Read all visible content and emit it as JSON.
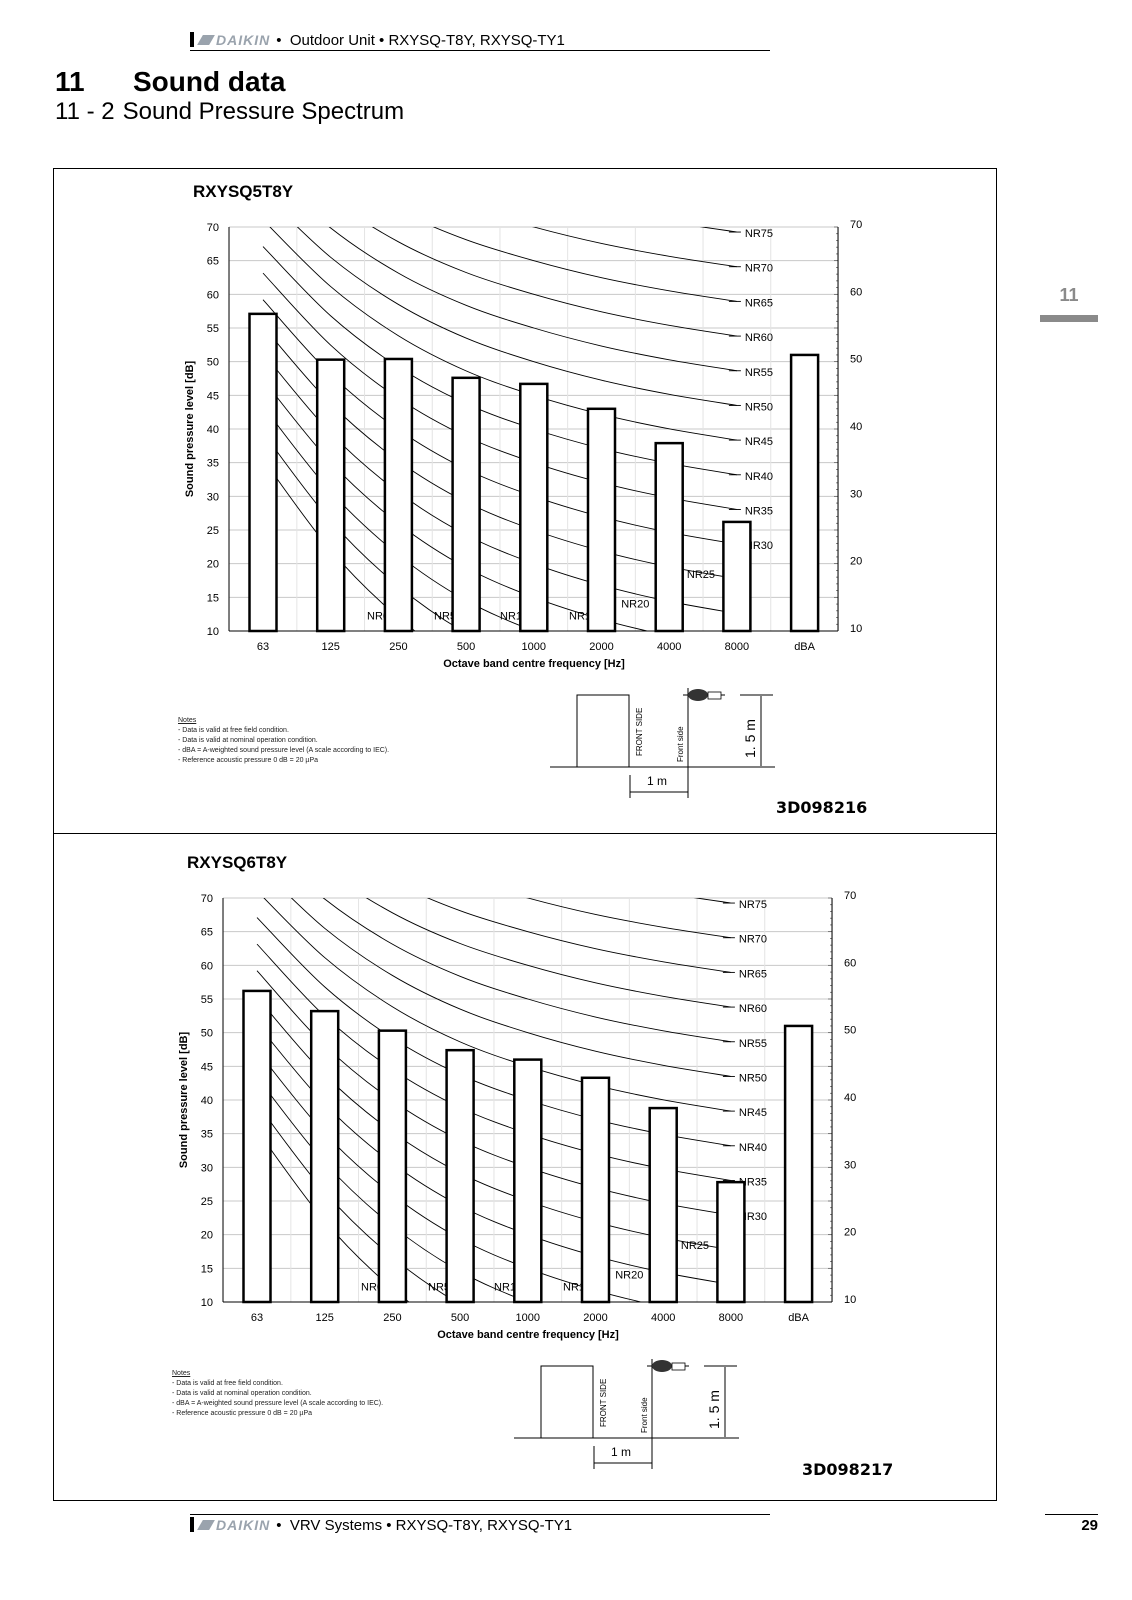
{
  "header": {
    "brand": "DAIKIN",
    "text": "Outdoor Unit • RXYSQ-T8Y, RXYSQ-TY1"
  },
  "section": {
    "number": "11",
    "title": "Sound data",
    "sub_number": "11 - 2",
    "sub_title": "Sound Pressure Spectrum"
  },
  "side_tab": "11",
  "panels": [
    {
      "drawing_no": "3D098216"
    },
    {
      "drawing_no": "3D098217"
    }
  ],
  "notes": {
    "title": "Notes",
    "items": [
      "-  Data is valid at free field condition.",
      "-  Data is valid at nominal operation condition.",
      "-  dBA = A-weighted sound pressure level (A scale according to IEC).",
      "-  Reference acoustic pressure 0 dB = 20 µPa"
    ]
  },
  "diagram": {
    "front_side_unit": "FRONT SIDE",
    "front_side": "Front side",
    "distance": "1 m",
    "height": "1. 5 m"
  },
  "footer": {
    "brand": "DAIKIN",
    "text": "VRV Systems • RXYSQ-T8Y, RXYSQ-TY1",
    "page": "29"
  },
  "chart_data": [
    {
      "type": "bar",
      "title": "RXYSQ5T8Y",
      "xlabel": "Octave band centre frequency [Hz]",
      "ylabel": "Sound pressure level [dB]",
      "categories": [
        "63",
        "125",
        "250",
        "500",
        "1000",
        "2000",
        "4000",
        "8000",
        "dBA"
      ],
      "values": [
        57.1,
        50.3,
        50.4,
        47.6,
        46.7,
        43.0,
        37.9,
        26.2,
        51.0
      ],
      "ylim": [
        10,
        70
      ],
      "left_ticks": [
        "10",
        "15",
        "20",
        "25",
        "30",
        "35",
        "40",
        "45",
        "50",
        "55",
        "60",
        "65",
        "70"
      ],
      "right_ticks": [
        "10",
        "20",
        "30",
        "40",
        "50",
        "60",
        "70"
      ],
      "grid": true,
      "nr_curves": [
        "NR0",
        "NR5",
        "NR10",
        "NR15",
        "NR20",
        "NR25",
        "NR30",
        "NR35",
        "NR40",
        "NR45",
        "NR50",
        "NR55",
        "NR60",
        "NR65",
        "NR70",
        "NR75"
      ]
    },
    {
      "type": "bar",
      "title": "RXYSQ6T8Y",
      "xlabel": "Octave band centre frequency [Hz]",
      "ylabel": "Sound pressure level [dB]",
      "categories": [
        "63",
        "125",
        "250",
        "500",
        "1000",
        "2000",
        "4000",
        "8000",
        "dBA"
      ],
      "values": [
        56.2,
        53.2,
        50.3,
        47.4,
        46.0,
        43.3,
        38.8,
        27.8,
        51.0
      ],
      "ylim": [
        10,
        70
      ],
      "left_ticks": [
        "10",
        "15",
        "20",
        "25",
        "30",
        "35",
        "40",
        "45",
        "50",
        "55",
        "60",
        "65",
        "70"
      ],
      "right_ticks": [
        "10",
        "20",
        "30",
        "40",
        "50",
        "60",
        "70"
      ],
      "grid": true,
      "nr_curves": [
        "NR0",
        "NR5",
        "NR10",
        "NR15",
        "NR20",
        "NR25",
        "NR30",
        "NR35",
        "NR40",
        "NR45",
        "NR50",
        "NR55",
        "NR60",
        "NR65",
        "NR70",
        "NR75"
      ]
    }
  ]
}
